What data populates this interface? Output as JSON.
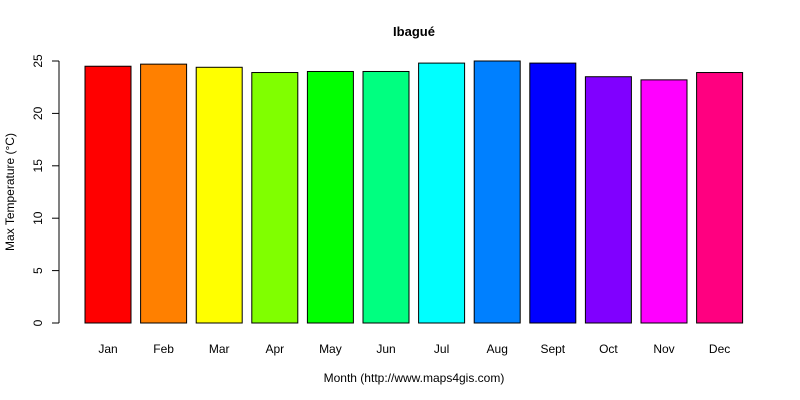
{
  "chart_data": {
    "type": "bar",
    "title": "Ibagué",
    "xlabel": "Month (http://www.maps4gis.com)",
    "ylabel": "Max Temperature (°C)",
    "categories": [
      "Jan",
      "Feb",
      "Mar",
      "Apr",
      "May",
      "Jun",
      "Jul",
      "Aug",
      "Sept",
      "Oct",
      "Nov",
      "Dec"
    ],
    "values": [
      24.5,
      24.7,
      24.4,
      23.9,
      24.0,
      24.0,
      24.8,
      25.0,
      24.8,
      23.5,
      23.2,
      23.9
    ],
    "colors": [
      "#FF0000",
      "#FF8000",
      "#FFFF00",
      "#80FF00",
      "#00FF00",
      "#00FF80",
      "#00FFFF",
      "#0080FF",
      "#0000FF",
      "#8000FF",
      "#FF00FF",
      "#FF0080"
    ],
    "yticks": [
      0,
      5,
      10,
      15,
      20,
      25
    ],
    "ylim": [
      0,
      25
    ],
    "grid": false,
    "legend": "none"
  }
}
